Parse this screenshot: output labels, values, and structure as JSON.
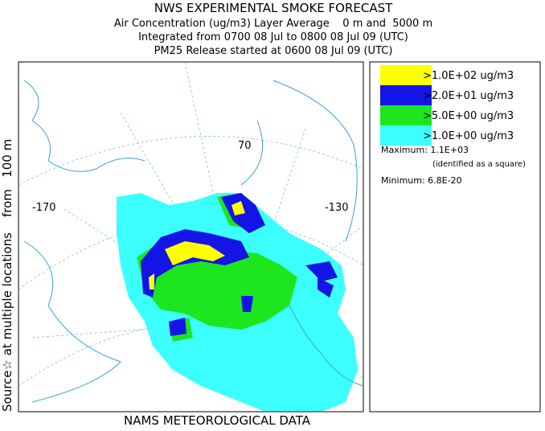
{
  "header": {
    "title": "NWS EXPERIMENTAL SMOKE FORECAST",
    "lines": [
      "Air Concentration (ug/m3) Layer Average    0 m and  5000 m",
      "Integrated from 0700 08 Jul to 0800 08 Jul 09 (UTC)",
      "PM25 Release started at 0600 08 Jul 09 (UTC)"
    ]
  },
  "side_label": "Source☆ at multiple locations    from   100 m",
  "footer": "NAMS METEOROLOGICAL DATA",
  "map": {
    "labels": [
      "-170",
      "70",
      "-130"
    ]
  },
  "legend": {
    "items": [
      {
        "label": ">1.0E+02 ug/m3",
        "color": "#ffff00"
      },
      {
        "label": ">2.0E+01 ug/m3",
        "color": "#1414e6"
      },
      {
        "label": ">5.0E+00 ug/m3",
        "color": "#1ee61e"
      },
      {
        "label": ">1.0E+00 ug/m3",
        "color": "#3cffff"
      }
    ],
    "maximum": "Maximum: 1.1E+03",
    "note": "(identified as a square)",
    "minimum": "Minimum: 6.8E-20"
  }
}
